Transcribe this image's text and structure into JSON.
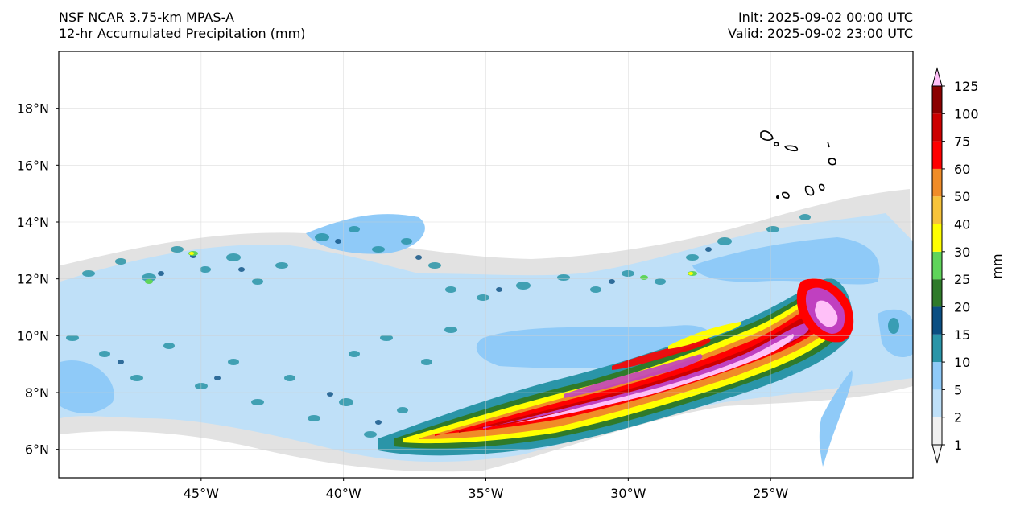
{
  "header": {
    "model": "NSF NCAR 3.75-km MPAS-A",
    "field": "12-hr Accumulated Precipitation (mm)",
    "init": "Init: 2025-09-02 00:00 UTC",
    "valid": "Valid: 2025-09-02 23:00 UTC"
  },
  "map": {
    "lon_range": [
      -50,
      -20
    ],
    "lat_range": [
      5,
      20
    ],
    "lon_ticks": [
      {
        "value": -45,
        "label": "45°W"
      },
      {
        "value": -40,
        "label": "40°W"
      },
      {
        "value": -35,
        "label": "35°W"
      },
      {
        "value": -30,
        "label": "30°W"
      },
      {
        "value": -25,
        "label": "25°W"
      }
    ],
    "lat_ticks": [
      {
        "value": 6,
        "label": "6°N"
      },
      {
        "value": 8,
        "label": "8°N"
      },
      {
        "value": 10,
        "label": "10°N"
      },
      {
        "value": 12,
        "label": "12°N"
      },
      {
        "value": 14,
        "label": "14°N"
      },
      {
        "value": 16,
        "label": "16°N"
      },
      {
        "value": 18,
        "label": "18°N"
      }
    ],
    "feature": "Cape Verde Islands coastline"
  },
  "colorbar": {
    "unit_label": "mm",
    "levels": [
      {
        "value": 1,
        "label": "1",
        "color": "#f0f0f0"
      },
      {
        "value": 2,
        "label": "2",
        "color": "#bfe0f8"
      },
      {
        "value": 5,
        "label": "5",
        "color": "#8fcaf8"
      },
      {
        "value": 10,
        "label": "10",
        "color": "#2a95a8"
      },
      {
        "value": 15,
        "label": "15",
        "color": "#0b4f82"
      },
      {
        "value": 20,
        "label": "20",
        "color": "#2f7a2a"
      },
      {
        "value": 25,
        "label": "25",
        "color": "#5fd45a"
      },
      {
        "value": 30,
        "label": "30",
        "color": "#ffff00"
      },
      {
        "value": 40,
        "label": "40",
        "color": "#f7c33a"
      },
      {
        "value": 50,
        "label": "50",
        "color": "#f08c28"
      },
      {
        "value": 60,
        "label": "60",
        "color": "#ff0000"
      },
      {
        "value": 75,
        "label": "75",
        "color": "#cc0000"
      },
      {
        "value": 100,
        "label": "100",
        "color": "#8b0000"
      },
      {
        "value": 125,
        "label": "125",
        "color": "#c040c0"
      }
    ],
    "top_extend_color": "#ffc0f8",
    "bottom_extend_color": "#f5f5f5"
  }
}
